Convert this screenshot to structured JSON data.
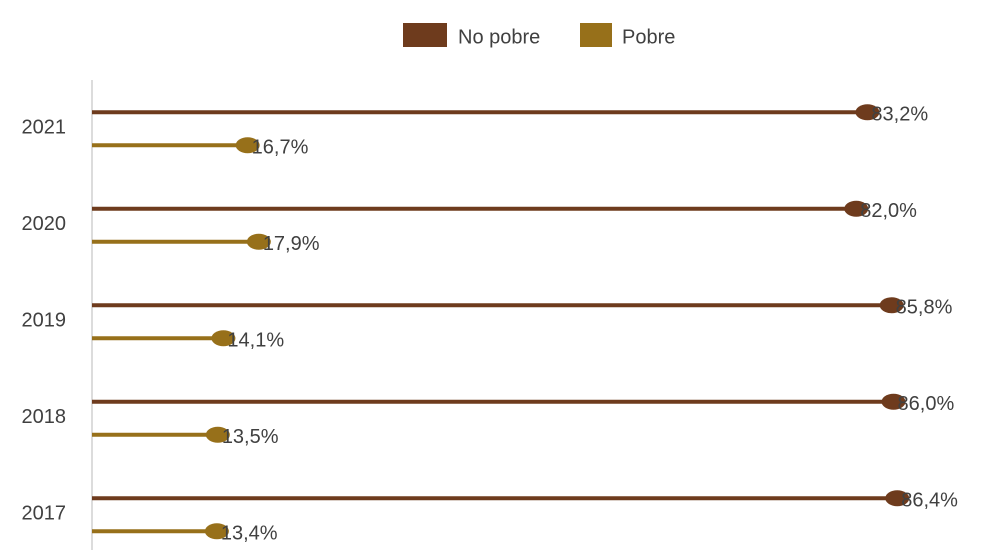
{
  "chart_data": {
    "type": "lollipop",
    "categories": [
      "2021",
      "2020",
      "2019",
      "2018",
      "2017"
    ],
    "series": [
      {
        "name": "No pobre",
        "color": "#6e3b1d",
        "values": [
          83.2,
          82.0,
          85.8,
          86.0,
          86.4
        ],
        "value_labels": [
          "83,2%",
          "82,0%",
          "85,8%",
          "86,0%",
          "86,4%"
        ]
      },
      {
        "name": "Pobre",
        "color": "#97701a",
        "values": [
          16.7,
          17.9,
          14.1,
          13.5,
          13.4
        ],
        "value_labels": [
          "16,7%",
          "17,9%",
          "14,1%",
          "13,5%",
          "13,4%"
        ]
      }
    ],
    "legend": "top"
  }
}
